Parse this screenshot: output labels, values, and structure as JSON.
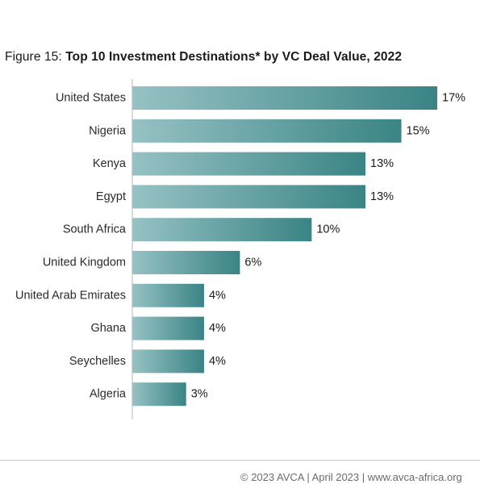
{
  "title": {
    "prefix": "Figure 15: ",
    "bold": "Top 10 Investment Destinations* by VC Deal Value, 2022"
  },
  "footer": {
    "text": "© 2023 AVCA | April 2023 | www.avca-africa.org"
  },
  "colors": {
    "bar_start": "#96c2c4",
    "bar_end": "#3a8485",
    "axis": "#b5b5b5"
  },
  "chart_data": {
    "type": "bar",
    "orientation": "horizontal",
    "categories": [
      "United States",
      "Nigeria",
      "Kenya",
      "Egypt",
      "South Africa",
      "United Kingdom",
      "United Arab Emirates",
      "Ghana",
      "Seychelles",
      "Algeria"
    ],
    "values": [
      17,
      15,
      13,
      13,
      10,
      6,
      4,
      4,
      4,
      3
    ],
    "value_labels": [
      "17%",
      "15%",
      "13%",
      "13%",
      "10%",
      "6%",
      "4%",
      "4%",
      "4%",
      "3%"
    ],
    "unit": "%",
    "title": "Figure 15: Top 10 Investment Destinations* by VC Deal Value, 2022",
    "xlabel": "",
    "ylabel": "",
    "grid": false,
    "legend": "none"
  }
}
